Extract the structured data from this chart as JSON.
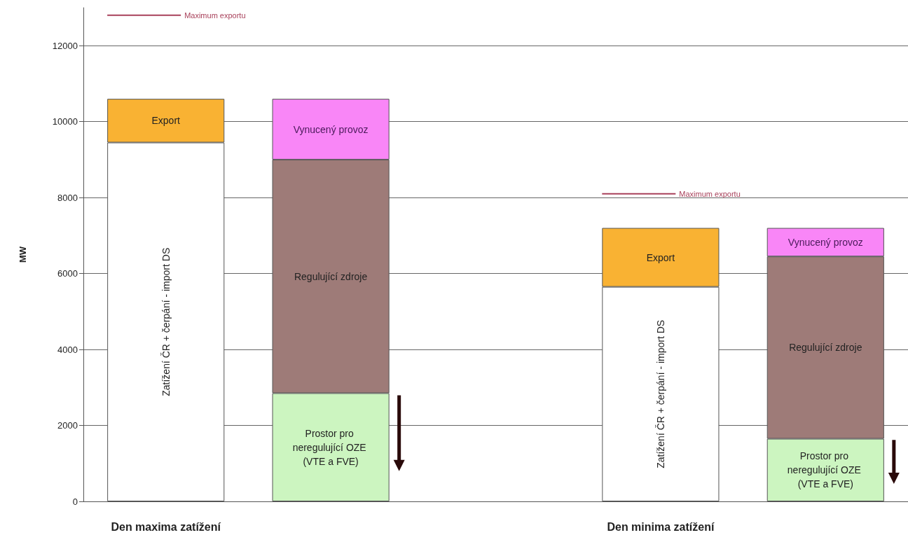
{
  "chart_data": {
    "type": "bar",
    "stacked": true,
    "ylabel": "MW",
    "ylim": [
      0,
      13000
    ],
    "yticks": [
      0,
      2000,
      4000,
      6000,
      8000,
      10000,
      12000
    ],
    "grid": "y",
    "legend": false,
    "categories": [
      null,
      null,
      null,
      null,
      null
    ],
    "series": [
      {
        "name": "Zatížení ČR + čerpání - import DS",
        "color": "#ffffff",
        "values": [
          9450,
          null,
          null,
          5650,
          null
        ]
      },
      {
        "name": "Export",
        "color": "#f9b233",
        "values": [
          1150,
          null,
          null,
          1550,
          null
        ]
      },
      {
        "name": "Prostor pro neregulující OZE (VTE a FVE)",
        "color": "#ccf5c0",
        "values": [
          null,
          2850,
          null,
          null,
          1650
        ]
      },
      {
        "name": "Regulující zdroje",
        "color": "#9e7b78",
        "values": [
          null,
          6150,
          null,
          null,
          4800
        ]
      },
      {
        "name": "Vynucený provoz",
        "color": "#f986f7",
        "values": [
          null,
          1600,
          null,
          null,
          750
        ]
      }
    ],
    "ref_lines": [
      {
        "axis": "y",
        "value": 12800,
        "label": "Maximum exportu",
        "color": "#a8405a"
      },
      {
        "axis": "y",
        "value": 8100,
        "label": "Maximum exportu",
        "color": "#a8405a"
      }
    ],
    "annotations": [
      "Den maxima zatížení",
      "Den minima zatížení"
    ]
  }
}
